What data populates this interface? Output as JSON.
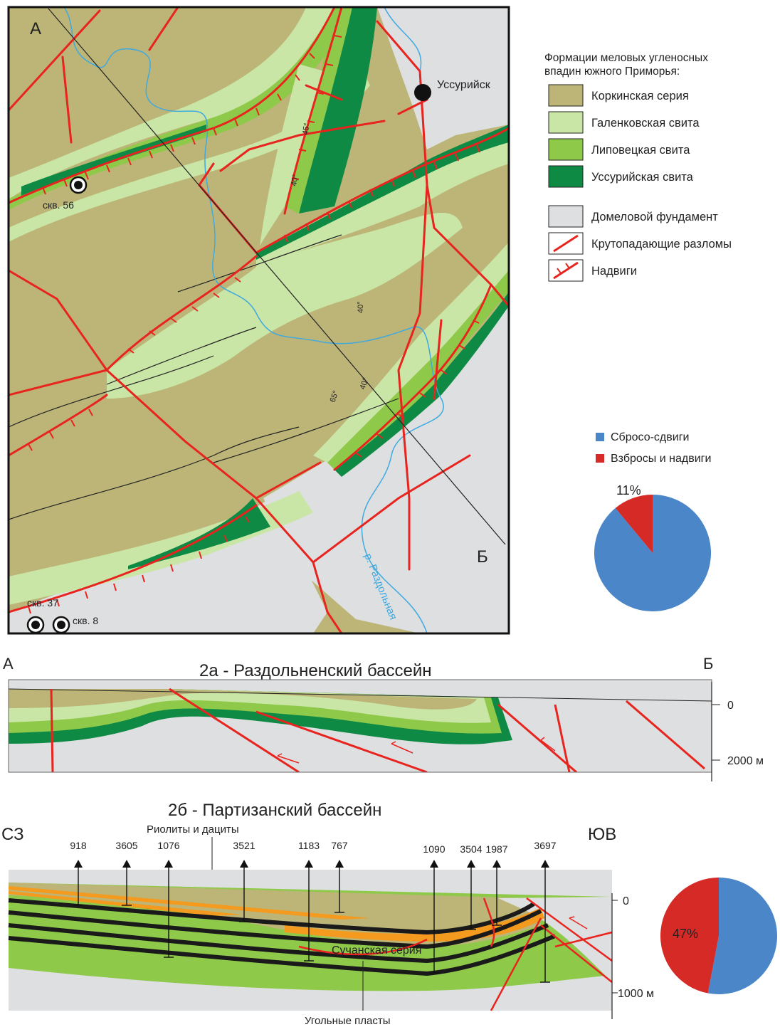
{
  "colors": {
    "korkino": "#bcb577",
    "galenkovka": "#c9e6a6",
    "lipovets": "#8fc94a",
    "ussuri": "#0e8a45",
    "basement": "#dedfe0",
    "fault": "#e8241f",
    "river": "#3fa9e0",
    "orange": "#f39a1f",
    "coal": "#1a1a1a",
    "pie_blue": "#4a86c8",
    "pie_red": "#d62a26"
  },
  "map": {
    "point_a": "А",
    "point_b": "Б",
    "city": "Уссурийск",
    "wells": [
      "скв. 56",
      "скв. 37",
      "скв. 8"
    ],
    "river": "р. Раздольная",
    "dips": [
      "45°",
      "40°",
      "40°",
      "65°",
      "40°"
    ]
  },
  "legend": {
    "title_line1": "Формации меловых угленосных",
    "title_line2": "впадин южного Приморья:",
    "items": [
      {
        "label": "Коркинская серия",
        "icon": "fill-korkino"
      },
      {
        "label": "Галенковская свита",
        "icon": "fill-galenkovka"
      },
      {
        "label": "Липовецкая свита",
        "icon": "fill-lipovets"
      },
      {
        "label": "Уссурийская свита",
        "icon": "fill-ussuri"
      },
      {
        "label": "Домеловой фундамент",
        "icon": "fill-basement"
      },
      {
        "label": "Крутопадающие разломы",
        "icon": "fault-line-icon"
      },
      {
        "label": "Надвиги",
        "icon": "thrust-line-icon"
      }
    ]
  },
  "pie_legend": {
    "items": [
      {
        "label": "Сбросо-сдвиги",
        "color": "#4a86c8"
      },
      {
        "label": "Взбросы и надвиги",
        "color": "#d62a26"
      }
    ]
  },
  "section_a": {
    "title": "2а - Раздольненский бассейн",
    "left": "А",
    "right": "Б",
    "tick0": "0",
    "tick1": "2000 м"
  },
  "section_b": {
    "title": "2б - Партизанский бассейн",
    "left": "СЗ",
    "right": "ЮВ",
    "rhyolite_label": "Риолиты и дациты",
    "suchan_label": "Сучанская серия",
    "coal_label": "Угольные пласты",
    "tick0": "0",
    "tick1": "1000 м",
    "wells": [
      "918",
      "3605",
      "1076",
      "3521",
      "1183",
      "767",
      "1090",
      "3504",
      "1987",
      "3697"
    ]
  },
  "chart_data": [
    {
      "type": "pie",
      "labels": [
        "Сбросо-сдвиги",
        "Взбросы и надвиги"
      ],
      "values": [
        89,
        11
      ],
      "data_labels": [
        "",
        "11%"
      ]
    },
    {
      "type": "pie",
      "labels": [
        "Сбросо-сдвиги",
        "Взбросы и надвиги"
      ],
      "values": [
        53,
        47
      ],
      "data_labels": [
        "",
        "47%"
      ]
    }
  ]
}
